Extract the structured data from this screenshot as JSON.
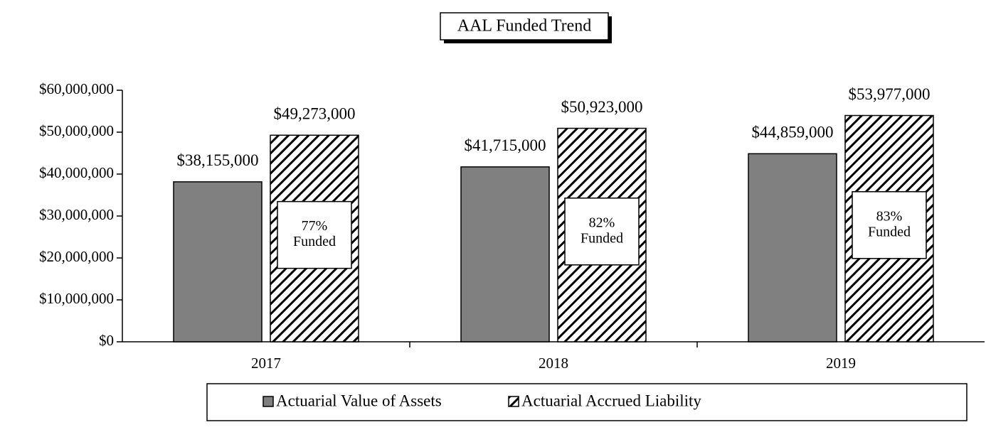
{
  "chart_data": {
    "type": "bar",
    "title": "AAL Funded Trend",
    "categories": [
      "2017",
      "2018",
      "2019"
    ],
    "series": [
      {
        "name": "Actuarial Value of Assets",
        "color": "#808080",
        "pattern": "solid",
        "values": [
          38155000,
          41715000,
          44859000
        ],
        "value_labels": [
          "$38,155,000",
          "$41,715,000",
          "$44,859,000"
        ]
      },
      {
        "name": "Actuarial Accrued Liability",
        "color": "#000000",
        "pattern": "hatch",
        "values": [
          49273000,
          50923000,
          53977000
        ],
        "value_labels": [
          "$49,273,000",
          "$50,923,000",
          "$53,977,000"
        ]
      }
    ],
    "annotations": [
      [
        "77%",
        "Funded"
      ],
      [
        "82%",
        "Funded"
      ],
      [
        "83%",
        "Funded"
      ]
    ],
    "ylim": [
      0,
      60000000
    ],
    "yticks": [
      {
        "value": 0,
        "label": "$0"
      },
      {
        "value": 10000000,
        "label": "$10,000,000"
      },
      {
        "value": 20000000,
        "label": "$20,000,000"
      },
      {
        "value": 30000000,
        "label": "$30,000,000"
      },
      {
        "value": 40000000,
        "label": "$40,000,000"
      },
      {
        "value": 50000000,
        "label": "$50,000,000"
      },
      {
        "value": 60000000,
        "label": "$60,000,000"
      }
    ],
    "grid": false,
    "legend": "bottom"
  }
}
